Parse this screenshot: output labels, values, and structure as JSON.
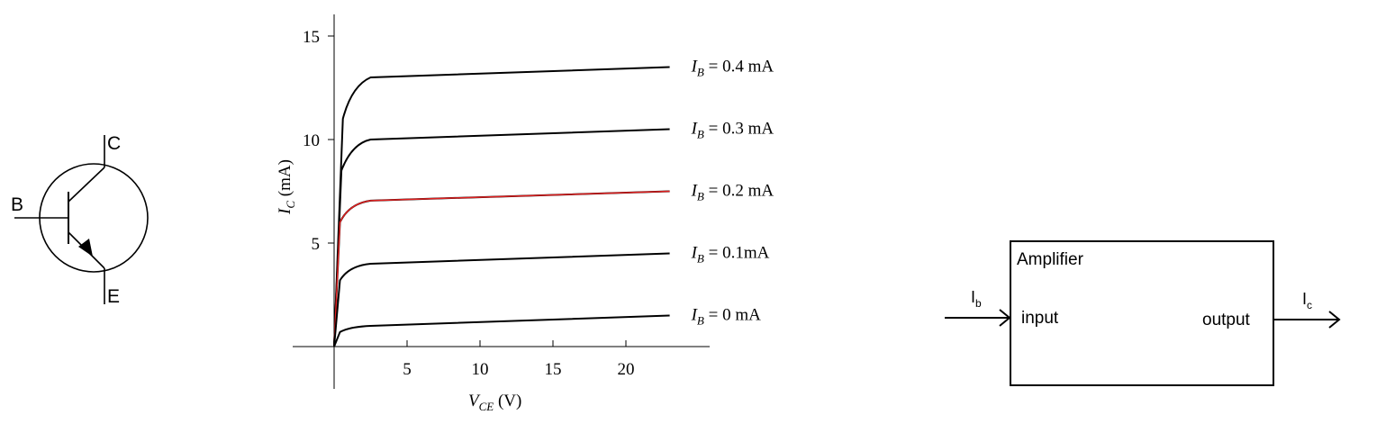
{
  "transistor": {
    "collector_label": "C",
    "base_label": "B",
    "emitter_label": "E"
  },
  "chart_data": {
    "type": "line",
    "xlabel_main": "V",
    "xlabel_sub": "CE",
    "xlabel_unit": " (V)",
    "ylabel_main": "I",
    "ylabel_sub": "C",
    "ylabel_unit": " (mA)",
    "xlim": [
      0,
      25
    ],
    "ylim": [
      0,
      15.5
    ],
    "x_ticks": [
      "5",
      "10",
      "15",
      "20"
    ],
    "y_ticks": [
      "5",
      "10",
      "15"
    ],
    "x_tick_values": [
      5,
      10,
      15,
      20
    ],
    "y_tick_values": [
      5,
      10,
      15
    ],
    "highlight_color": "#e02020",
    "curve_color": "#000000",
    "series": [
      {
        "name_main": "I",
        "name_sub": "B",
        "name_rest": " = 0.4 mA",
        "x": [
          0,
          0.6,
          1.2,
          2.5,
          23
        ],
        "y": [
          0,
          11.0,
          12.6,
          13.0,
          13.5
        ],
        "highlight": false
      },
      {
        "name_main": "I",
        "name_sub": "B",
        "name_rest": " = 0.3 mA",
        "x": [
          0,
          0.5,
          1.2,
          2.5,
          23
        ],
        "y": [
          0,
          8.5,
          9.8,
          10.0,
          10.5
        ],
        "highlight": false
      },
      {
        "name_main": "I",
        "name_sub": "B",
        "name_rest": " = 0.2 mA",
        "x": [
          0,
          0.4,
          1.0,
          2.5,
          23
        ],
        "y": [
          0,
          6.0,
          6.9,
          7.05,
          7.5
        ],
        "highlight": true
      },
      {
        "name_main": "I",
        "name_sub": "B",
        "name_rest": " = 0.1mA",
        "x": [
          0,
          0.4,
          1.0,
          2.5,
          23
        ],
        "y": [
          0,
          3.2,
          3.9,
          4.0,
          4.5
        ],
        "highlight": false
      },
      {
        "name_main": "I",
        "name_sub": "B",
        "name_rest": " = 0 mA",
        "x": [
          0,
          0.4,
          1.0,
          2.5,
          23
        ],
        "y": [
          0,
          0.7,
          0.95,
          1.0,
          1.5
        ],
        "highlight": false
      }
    ]
  },
  "amplifier": {
    "title": "Amplifier",
    "input_label": "input",
    "output_label": "output",
    "input_signal_main": "I",
    "input_signal_sub": "b",
    "output_signal_main": "I",
    "output_signal_sub": "c"
  }
}
